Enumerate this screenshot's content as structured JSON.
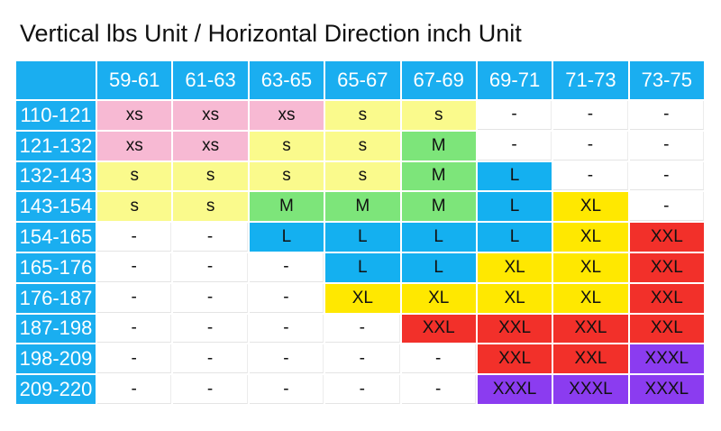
{
  "title": "Vertical lbs Unit / Horizontal Direction inch Unit",
  "columns": [
    "59-61",
    "61-63",
    "63-65",
    "65-67",
    "67-69",
    "69-71",
    "71-73",
    "73-75"
  ],
  "header_color": "#1aaef0",
  "rows": [
    {
      "label": "110-121",
      "cells": [
        "xs",
        "xs",
        "xs",
        "s",
        "s",
        "-",
        "-",
        "-"
      ],
      "colors": [
        "#f7b9d3",
        "#f7b9d3",
        "#f7b9d3",
        "#fafa8c",
        "#fafa8c",
        "#ffffff",
        "#ffffff",
        "#ffffff"
      ]
    },
    {
      "label": "121-132",
      "cells": [
        "xs",
        "xs",
        "s",
        "s",
        "M",
        "-",
        "-",
        "-"
      ],
      "colors": [
        "#f7b9d3",
        "#f7b9d3",
        "#fafa8c",
        "#fafa8c",
        "#7de57a",
        "#ffffff",
        "#ffffff",
        "#ffffff"
      ]
    },
    {
      "label": "132-143",
      "cells": [
        "s",
        "s",
        "s",
        "s",
        "M",
        "L",
        "-",
        "-"
      ],
      "colors": [
        "#fafa8c",
        "#fafa8c",
        "#fafa8c",
        "#fafa8c",
        "#7de57a",
        "#14b0f0",
        "#ffffff",
        "#ffffff"
      ]
    },
    {
      "label": "143-154",
      "cells": [
        "s",
        "s",
        "M",
        "M",
        "M",
        "L",
        "XL",
        "-"
      ],
      "colors": [
        "#fafa8c",
        "#fafa8c",
        "#7de57a",
        "#7de57a",
        "#7de57a",
        "#14b0f0",
        "#ffe800",
        "#ffffff"
      ]
    },
    {
      "label": "154-165",
      "cells": [
        "-",
        "-",
        "L",
        "L",
        "L",
        "L",
        "XL",
        "XXL"
      ],
      "colors": [
        "#ffffff",
        "#ffffff",
        "#14b0f0",
        "#14b0f0",
        "#14b0f0",
        "#14b0f0",
        "#ffe800",
        "#f2302a"
      ]
    },
    {
      "label": "165-176",
      "cells": [
        "-",
        "-",
        "-",
        "L",
        "L",
        "XL",
        "XL",
        "XXL"
      ],
      "colors": [
        "#ffffff",
        "#ffffff",
        "#ffffff",
        "#14b0f0",
        "#14b0f0",
        "#ffe800",
        "#ffe800",
        "#f2302a"
      ]
    },
    {
      "label": "176-187",
      "cells": [
        "-",
        "-",
        "-",
        "XL",
        "XL",
        "XL",
        "XL",
        "XXL"
      ],
      "colors": [
        "#ffffff",
        "#ffffff",
        "#ffffff",
        "#ffe800",
        "#ffe800",
        "#ffe800",
        "#ffe800",
        "#f2302a"
      ]
    },
    {
      "label": "187-198",
      "cells": [
        "-",
        "-",
        "-",
        "-",
        "XXL",
        "XXL",
        "XXL",
        "XXL"
      ],
      "colors": [
        "#ffffff",
        "#ffffff",
        "#ffffff",
        "#ffffff",
        "#f2302a",
        "#f2302a",
        "#f2302a",
        "#f2302a"
      ]
    },
    {
      "label": "198-209",
      "cells": [
        "-",
        "-",
        "-",
        "-",
        "-",
        "XXL",
        "XXL",
        "XXXL"
      ],
      "colors": [
        "#ffffff",
        "#ffffff",
        "#ffffff",
        "#ffffff",
        "#ffffff",
        "#f2302a",
        "#f2302a",
        "#8b3cf0"
      ]
    },
    {
      "label": "209-220",
      "cells": [
        "-",
        "-",
        "-",
        "-",
        "-",
        "XXXL",
        "XXXL",
        "XXXL"
      ],
      "colors": [
        "#ffffff",
        "#ffffff",
        "#ffffff",
        "#ffffff",
        "#ffffff",
        "#8b3cf0",
        "#8b3cf0",
        "#8b3cf0"
      ]
    }
  ]
}
